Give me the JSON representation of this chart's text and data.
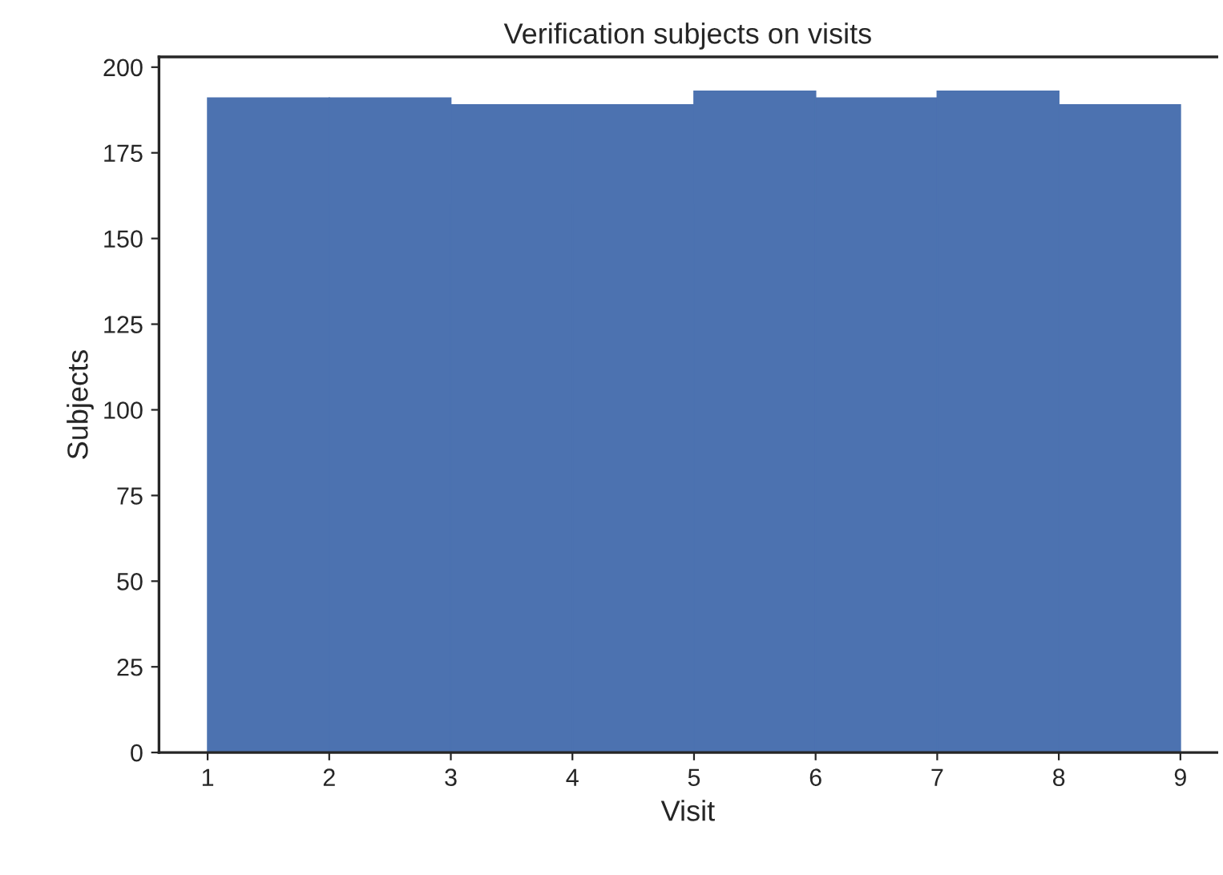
{
  "chart_data": {
    "type": "histogram",
    "title": "Verification subjects on visits",
    "xlabel": "Visit",
    "ylabel": "Subjects",
    "bins": [
      1,
      2,
      3,
      4,
      5,
      6,
      7,
      8,
      9
    ],
    "values": [
      191,
      191,
      189,
      189,
      193,
      191,
      193,
      189
    ],
    "color": "#4c72b0",
    "xlim": [
      0.6,
      9.3
    ],
    "xticks": [
      1,
      2,
      3,
      4,
      5,
      6,
      7,
      8,
      9
    ],
    "ylim": [
      0,
      203
    ],
    "yticks": [
      0,
      25,
      50,
      75,
      100,
      125,
      150,
      175,
      200
    ],
    "grid": false
  }
}
